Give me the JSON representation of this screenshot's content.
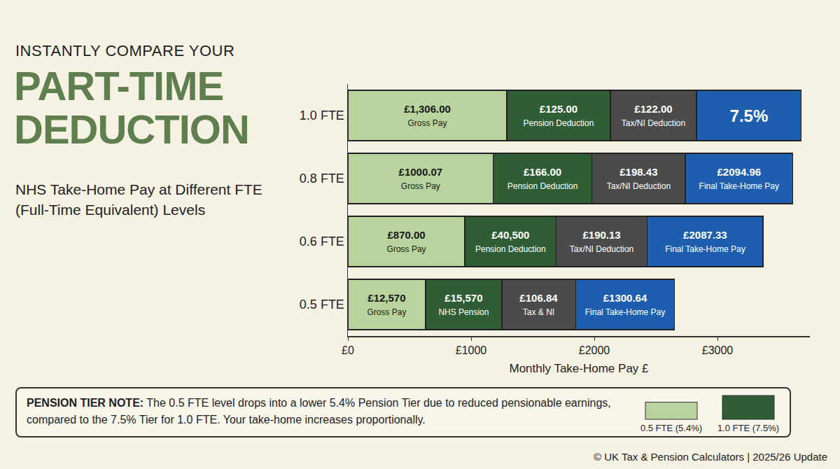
{
  "header": {
    "kicker": "INSTANTLY COMPARE YOUR",
    "title": "PART-TIME DEDUCTION",
    "subtitle": "NHS Take-Home Pay at Different FTE (Full-Time Equivalent) Levels"
  },
  "chart_data": {
    "type": "bar",
    "orientation": "horizontal",
    "stacked": true,
    "grid": false,
    "categories": [
      "1.0 FTE",
      "0.8 FTE",
      "0.6 FTE",
      "0.5 FTE"
    ],
    "x_label": "Monthly Take-Home Pay £",
    "xlim": [
      0,
      3750
    ],
    "xticks": [
      {
        "value": 0,
        "label": "£0"
      },
      {
        "value": 1000,
        "label": "£1000"
      },
      {
        "value": 2000,
        "label": "£2000"
      },
      {
        "value": 3000,
        "label": "£3000"
      }
    ],
    "series": [
      {
        "color": "#b9d39e",
        "values": [
          1290,
          1180,
          950,
          630
        ],
        "amounts": [
          "£1,306.00",
          "£1000.07",
          "£870.00",
          "£12,570"
        ],
        "captions": [
          "Gross Pay",
          "Gross Pay",
          "Gross Pay",
          "Gross Pay"
        ]
      },
      {
        "color": "#2f5d34",
        "values": [
          840,
          800,
          740,
          620
        ],
        "amounts": [
          "£125.00",
          "£166.00",
          "£40,500",
          "£15,570"
        ],
        "captions": [
          "Pension Deduction",
          "Pension Deduction",
          "Pension Deduction",
          "NHS Pension"
        ]
      },
      {
        "color": "#4b4b4b",
        "values": [
          700,
          760,
          740,
          600
        ],
        "amounts": [
          "£122.00",
          "£198.43",
          "£190.13",
          "£106.84"
        ],
        "captions": [
          "Tax/NI Deduction",
          "Tax/NI Deduction",
          "Tax/NI Deduction",
          "Tax & NI"
        ]
      },
      {
        "color": "#1d5fae",
        "values": [
          850,
          870,
          940,
          800
        ],
        "amounts": [
          "7.5%",
          "£2094.96",
          "£2087.33",
          "£1300.64"
        ],
        "captions": [
          null,
          "Final Take-Home Pay",
          "Final Take-Home Pay",
          "Final Take-Home Pay"
        ]
      }
    ]
  },
  "note": {
    "title": "PENSION TIER NOTE:",
    "text": "The 0.5 FTE level drops into a lower 5.4% Pension Tier due to reduced pensionable earnings, compared to the 7.5% Tier for 1.0 FTE. Your take-home increases proportionally.",
    "tiers": [
      {
        "label": "0.5 FTE (5.4%)",
        "value": 5.4,
        "color": "#b9d39e"
      },
      {
        "label": "1.0 FTE (7.5%)",
        "value": 7.5,
        "color": "#2f5d34"
      }
    ]
  },
  "footer": "© UK Tax & Pension Calculators | 2025/26 Update"
}
